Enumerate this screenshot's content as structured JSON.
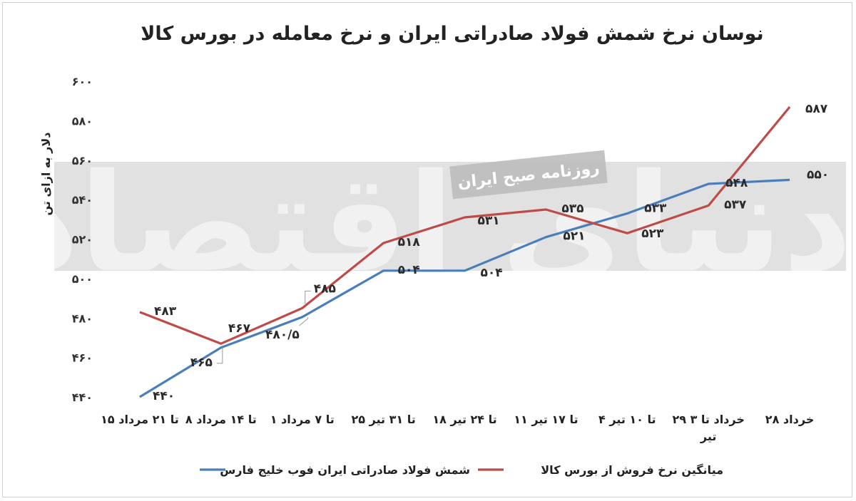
{
  "chart_data": {
    "type": "line",
    "title": "نوسان نرخ شمش فولاد صادراتی ایران و نرخ معامله در بورس کالا",
    "xlabel": "",
    "ylabel": "دلار به ازای تن",
    "ylim": [
      440,
      600
    ],
    "yticks": [
      440,
      460,
      480,
      500,
      520,
      540,
      560,
      580,
      600
    ],
    "ytick_labels": [
      "۴۴۰",
      "۴۶۰",
      "۴۸۰",
      "۵۰۰",
      "۵۲۰",
      "۵۴۰",
      "۵۶۰",
      "۵۸۰",
      "۶۰۰"
    ],
    "grid": false,
    "legend_position": "bottom",
    "categories": [
      [
        "۲۸ خرداد"
      ],
      [
        "۲۹ خرداد تا ۳",
        "تیر"
      ],
      [
        "۴ تا ۱۰ تیر"
      ],
      [
        "۱۱ تا ۱۷ تیر"
      ],
      [
        "۱۸ تا ۲۴ تیر"
      ],
      [
        "۲۵ تا ۳۱ تیر"
      ],
      [
        "۱ تا ۷ مرداد"
      ],
      [
        "۸ تا ۱۴ مرداد"
      ],
      [
        "۱۵ تا ۲۱ مرداد"
      ]
    ],
    "series": [
      {
        "name": "شمش فولاد صادراتی ایران فوب خلیج فارس",
        "color": "#4a7ebb",
        "values": [
          550,
          548,
          533,
          521,
          504,
          504,
          480.5,
          465,
          440
        ],
        "labels": [
          "۵۵۰",
          "۵۴۸",
          "۵۳۳",
          "۵۲۱",
          "۵۰۴",
          "۵۰۴",
          "۴۸۰/۵",
          "۴۶۵",
          "۴۴۰"
        ]
      },
      {
        "name": "میانگین نرخ فروش از بورس کالا",
        "color": "#be4b48",
        "values": [
          587,
          537,
          523,
          535,
          531,
          518,
          485,
          467,
          483
        ],
        "labels": [
          "۵۸۷",
          "۵۳۷",
          "۵۲۳",
          "۵۳۵",
          "۵۳۱",
          "۵۱۸",
          "۴۸۵",
          "۴۶۷",
          "۴۸۳"
        ]
      }
    ]
  },
  "watermark": {
    "logo_text": "دنیای اقتصاد",
    "badge_text": "روزنامه صبح ایران"
  }
}
